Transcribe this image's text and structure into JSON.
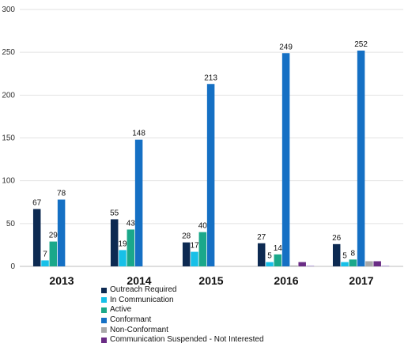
{
  "chart_data": {
    "type": "bar",
    "categories": [
      "2013",
      "2014",
      "2015",
      "2016",
      "2017"
    ],
    "ylim": [
      0,
      300
    ],
    "yticks": [
      0,
      50,
      100,
      150,
      200,
      250,
      300
    ],
    "grid": true,
    "legend_position": "bottom",
    "series": [
      {
        "name": "Outreach Required",
        "color": "#0d2a52",
        "values": [
          67,
          55,
          28,
          27,
          26
        ],
        "labels": [
          "67",
          "55",
          "28",
          "27",
          "26"
        ]
      },
      {
        "name": "In Communication",
        "color": "#17c0e8",
        "values": [
          7,
          19,
          17,
          5,
          5
        ],
        "labels": [
          "7",
          "19",
          "17",
          "5",
          "5"
        ]
      },
      {
        "name": "Active",
        "color": "#1aa88a",
        "values": [
          29,
          43,
          40,
          14,
          8
        ],
        "labels": [
          "29",
          "43",
          "40",
          "14",
          "8"
        ]
      },
      {
        "name": "Conformant",
        "color": "#1570c4",
        "values": [
          78,
          148,
          213,
          249,
          252
        ],
        "labels": [
          "78",
          "148",
          "213",
          "249",
          "252"
        ]
      },
      {
        "name": "Non-Conformant",
        "color": "#a8a8a8",
        "values": [
          0,
          0,
          0,
          1,
          6
        ],
        "labels": [
          "",
          "",
          "",
          "",
          ""
        ]
      },
      {
        "name": "Communication Suspended - Not Interested",
        "color": "#6a2c85",
        "values": [
          0,
          0,
          0,
          5,
          6
        ],
        "labels": [
          "",
          "",
          "",
          "",
          ""
        ]
      },
      {
        "name": "",
        "color": "#b9a6d8",
        "values": [
          0,
          0,
          0,
          1,
          1
        ],
        "labels": [
          "",
          "",
          "",
          "",
          ""
        ]
      }
    ]
  },
  "legend": {
    "items": [
      {
        "label": "Outreach Required",
        "color": "#0d2a52"
      },
      {
        "label": "In Communication",
        "color": "#17c0e8"
      },
      {
        "label": "Active",
        "color": "#1aa88a"
      },
      {
        "label": "Conformant",
        "color": "#1570c4"
      },
      {
        "label": "Non-Conformant",
        "color": "#a8a8a8"
      },
      {
        "label": "Communication Suspended - Not Interested",
        "color": "#6a2c85"
      }
    ]
  }
}
